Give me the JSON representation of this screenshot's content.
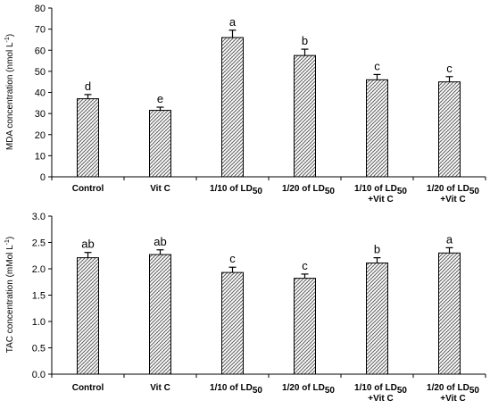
{
  "chart_data": [
    {
      "type": "bar",
      "ylabel": "MDA concentration (nmol L",
      "ylabel_sup": "-1",
      "ylabel_end": ")",
      "ylim": [
        0,
        80
      ],
      "ticks": [
        0,
        10,
        20,
        30,
        40,
        50,
        60,
        70,
        80
      ],
      "categories": [
        {
          "line1": "Control",
          "sub": "",
          "line2": ""
        },
        {
          "line1": "Vit C",
          "sub": "",
          "line2": ""
        },
        {
          "line1": "1/10 of LD",
          "sub": "50",
          "line2": ""
        },
        {
          "line1": "1/20 of LD",
          "sub": "50",
          "line2": ""
        },
        {
          "line1": "1/10 of LD",
          "sub": "50",
          "line2": "+Vit C"
        },
        {
          "line1": "1/20 of LD",
          "sub": "50",
          "line2": "+Vit C"
        }
      ],
      "values": [
        37,
        31.5,
        66,
        57.5,
        46,
        45
      ],
      "errors": [
        2,
        1.5,
        3.5,
        3,
        2.5,
        2.5
      ],
      "letters": [
        "d",
        "e",
        "a",
        "b",
        "c",
        "c"
      ]
    },
    {
      "type": "bar",
      "ylabel": "TAC concentration (mMol L",
      "ylabel_sup": "-1",
      "ylabel_end": ")",
      "ylim": [
        0,
        3.0
      ],
      "ticks": [
        "0.0",
        "0.5",
        "1.0",
        "1.5",
        "2.0",
        "2.5",
        "3.0"
      ],
      "categories": [
        {
          "line1": "Control",
          "sub": "",
          "line2": ""
        },
        {
          "line1": "Vit C",
          "sub": "",
          "line2": ""
        },
        {
          "line1": "1/10 of LD",
          "sub": "50",
          "line2": ""
        },
        {
          "line1": "1/20 of LD",
          "sub": "50",
          "line2": ""
        },
        {
          "line1": "1/10 of LD",
          "sub": "50",
          "line2": "+Vit C"
        },
        {
          "line1": "1/20 of LD",
          "sub": "50",
          "line2": "+Vit C"
        }
      ],
      "values": [
        2.21,
        2.27,
        1.93,
        1.82,
        2.11,
        2.3
      ],
      "errors": [
        0.1,
        0.09,
        0.1,
        0.08,
        0.1,
        0.1
      ],
      "letters": [
        "ab",
        "ab",
        "c",
        "c",
        "b",
        "a"
      ]
    }
  ]
}
